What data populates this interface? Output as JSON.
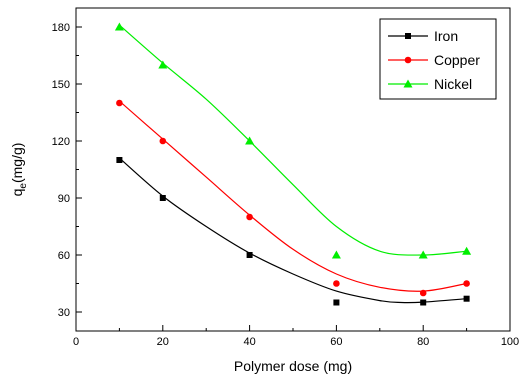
{
  "chart_data": {
    "type": "scatter",
    "title": "",
    "xlabel": "Polymer dose (mg)",
    "ylabel_main": "q",
    "ylabel_sub": "e",
    "ylabel_rest": "(mg/g)",
    "xlim": [
      0,
      100
    ],
    "ylim": [
      20,
      190
    ],
    "x_ticks": [
      0,
      20,
      40,
      60,
      80,
      100
    ],
    "y_ticks": [
      30,
      60,
      90,
      120,
      150,
      180
    ],
    "grid": false,
    "legend_position": "top-right",
    "x": [
      10,
      20,
      40,
      60,
      80,
      90
    ],
    "series": [
      {
        "name": "Iron",
        "color": "#000000",
        "marker": "square",
        "values": [
          110,
          90,
          60,
          35,
          35,
          37
        ]
      },
      {
        "name": "Copper",
        "color": "#ff0000",
        "marker": "circle",
        "values": [
          140,
          120,
          80,
          45,
          40,
          45
        ]
      },
      {
        "name": "Nickel",
        "color": "#00ee00",
        "marker": "triangle",
        "values": [
          180,
          160,
          120,
          60,
          60,
          62
        ]
      }
    ],
    "fit_curves": [
      {
        "series": "Iron",
        "color": "#000000",
        "points": [
          [
            10,
            111
          ],
          [
            20,
            91
          ],
          [
            30,
            75
          ],
          [
            40,
            61
          ],
          [
            50,
            50
          ],
          [
            60,
            41
          ],
          [
            70,
            36
          ],
          [
            75,
            35
          ],
          [
            80,
            35.2
          ],
          [
            90,
            37
          ]
        ]
      },
      {
        "series": "Copper",
        "color": "#ff0000",
        "points": [
          [
            10,
            141
          ],
          [
            20,
            121
          ],
          [
            30,
            101
          ],
          [
            40,
            81
          ],
          [
            50,
            63
          ],
          [
            60,
            50
          ],
          [
            70,
            43
          ],
          [
            80,
            41
          ],
          [
            90,
            45
          ]
        ]
      },
      {
        "series": "Nickel",
        "color": "#00ee00",
        "points": [
          [
            10,
            181
          ],
          [
            20,
            161
          ],
          [
            30,
            142
          ],
          [
            40,
            120
          ],
          [
            50,
            97
          ],
          [
            60,
            75
          ],
          [
            70,
            62
          ],
          [
            80,
            60
          ],
          [
            90,
            62
          ]
        ]
      }
    ]
  }
}
